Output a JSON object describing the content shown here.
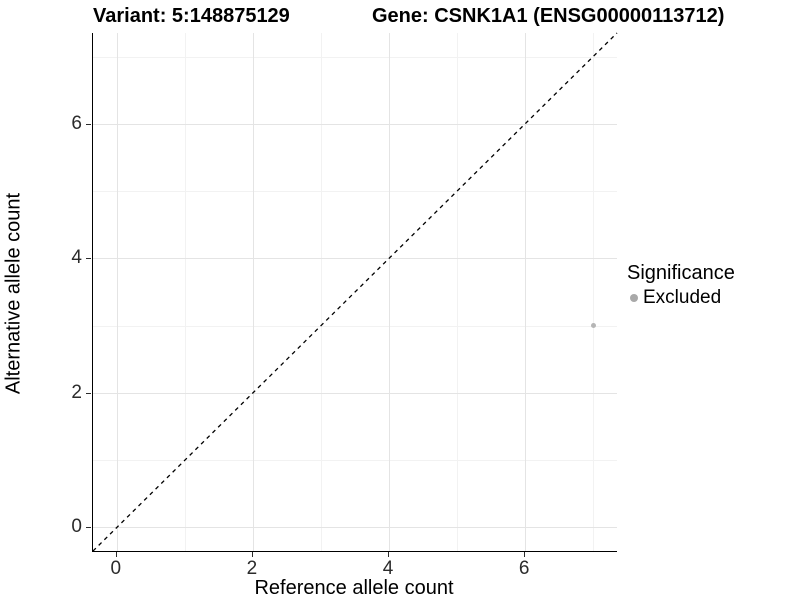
{
  "header": {
    "variant_title": "Variant: 5:148875129",
    "gene_title": "Gene: CSNK1A1 (ENSG00000113712)"
  },
  "chart_data": {
    "type": "scatter",
    "xlabel": "Reference allele count",
    "ylabel": "Alternative allele count",
    "xlim": [
      -0.35,
      7.35
    ],
    "ylim": [
      -0.35,
      7.35
    ],
    "x_major_ticks": [
      0,
      2,
      4,
      6
    ],
    "y_major_ticks": [
      0,
      2,
      4,
      6
    ],
    "x_minor_ticks": [
      1,
      3,
      5,
      7
    ],
    "y_minor_ticks": [
      1,
      3,
      5,
      7
    ],
    "grid": "on",
    "reference_line": {
      "kind": "identity y=x",
      "style": "dashed",
      "color": "#000000"
    },
    "series": [
      {
        "name": "Excluded",
        "color": "#b5b5b5",
        "points": [
          {
            "x": 7,
            "y": 3
          }
        ]
      }
    ],
    "legend": {
      "title": "Significance",
      "position": "right",
      "entries": [
        {
          "label": "Excluded",
          "color": "#a9a9a9"
        }
      ]
    },
    "colors": {
      "grid_major": "#e4e4e4",
      "grid_minor": "#f2f2f2",
      "axis_line": "#000000",
      "tick_text": "#2b2b2b"
    }
  }
}
